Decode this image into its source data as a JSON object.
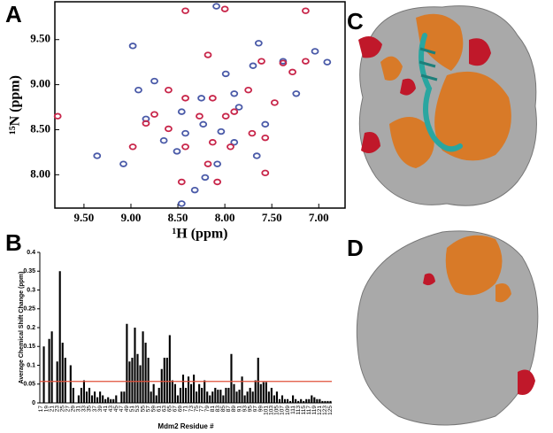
{
  "panels": [
    "A",
    "B",
    "C",
    "D"
  ],
  "chart_data": [
    {
      "type": "scatter",
      "xlabel": "¹H (ppm)",
      "ylabel": "¹⁵N (ppm)",
      "xlim": [
        9.81,
        6.72
      ],
      "ylim": [
        7.63,
        9.92
      ],
      "xticks": [
        {
          "value": 9.5,
          "label": "9.50"
        },
        {
          "value": 9.0,
          "label": "9.00"
        },
        {
          "value": 8.5,
          "label": "8.50"
        },
        {
          "value": 8.0,
          "label": "8.00"
        },
        {
          "value": 7.5,
          "label": "7.50"
        },
        {
          "value": 7.0,
          "label": "7.00"
        }
      ],
      "yticks": [
        {
          "value": 9.5,
          "label": "9.50"
        },
        {
          "value": 9.0,
          "label": "9.00"
        },
        {
          "value": 8.5,
          "label": "8.50"
        },
        {
          "value": 8.0,
          "label": "8.00"
        }
      ],
      "series": [
        {
          "color": "#4a5aa8",
          "x": [
            8.09,
            7.64,
            7.04,
            7.38,
            7.7,
            6.91,
            8.92,
            8.75,
            7.99,
            8.25,
            7.9,
            7.85,
            8.46,
            8.23,
            8.04,
            8.42,
            8.65,
            7.9,
            7.57,
            8.84,
            8.08,
            8.51,
            8.21,
            7.66,
            8.32,
            9.08,
            9.36,
            8.98,
            7.24,
            8.46
          ],
          "values": [
            9.87,
            9.46,
            9.37,
            9.26,
            9.21,
            9.25,
            8.94,
            9.04,
            9.12,
            8.85,
            8.9,
            8.75,
            8.7,
            8.56,
            8.48,
            8.46,
            8.38,
            8.36,
            8.56,
            8.62,
            8.12,
            8.26,
            7.97,
            8.21,
            7.83,
            8.12,
            8.21,
            9.43,
            8.9,
            7.68
          ]
        },
        {
          "color": "#c8264a",
          "x": [
            8.42,
            8.0,
            7.14,
            7.61,
            7.14,
            8.18,
            7.28,
            7.75,
            8.6,
            8.42,
            8.13,
            7.99,
            8.27,
            8.75,
            8.84,
            8.6,
            8.42,
            8.13,
            7.94,
            7.71,
            7.57,
            8.18,
            8.08,
            8.46,
            7.9,
            9.78,
            8.98,
            7.47,
            7.38,
            7.57
          ],
          "values": [
            9.82,
            9.84,
            9.82,
            9.26,
            9.26,
            9.33,
            9.14,
            8.94,
            8.94,
            8.85,
            8.85,
            8.65,
            8.65,
            8.67,
            8.57,
            8.51,
            8.31,
            8.36,
            8.31,
            8.46,
            8.02,
            8.12,
            7.92,
            7.92,
            8.7,
            8.65,
            8.31,
            8.8,
            9.24,
            8.41
          ]
        }
      ]
    },
    {
      "type": "bar",
      "xlabel": "Mdm2 Residue #",
      "ylabel": "Average Chemical Shift Change (ppm)",
      "color": "#000000",
      "threshold": 0.057,
      "threshold_color": "#e0503a",
      "ylim": [
        0,
        0.4
      ],
      "yticks": [
        0,
        0.05,
        0.1,
        0.15,
        0.2,
        0.25,
        0.3,
        0.35,
        0.4
      ],
      "categories": [
        "17",
        null,
        "19",
        null,
        "21",
        null,
        "23",
        null,
        "25",
        null,
        "27",
        null,
        "29",
        null,
        "31",
        null,
        "33",
        null,
        "35",
        null,
        "37",
        null,
        "39",
        null,
        "41",
        null,
        "43",
        null,
        "45",
        null,
        "47",
        null,
        "49",
        null,
        "51",
        null,
        "53",
        null,
        "55",
        null,
        "57",
        null,
        "59",
        null,
        "61",
        null,
        "63",
        null,
        "65",
        null,
        "67",
        null,
        "69",
        null,
        "71",
        null,
        "73",
        null,
        "75",
        null,
        "77",
        null,
        "79",
        null,
        "81",
        null,
        "83",
        null,
        "85",
        null,
        "87",
        null,
        "89",
        null,
        "91",
        null,
        "93",
        null,
        "95",
        null,
        "97",
        null,
        "99",
        null,
        "101",
        null,
        "103",
        null,
        "105",
        null,
        "107",
        null,
        "109",
        null,
        "111",
        null,
        "113",
        null,
        "115",
        null,
        "117",
        null,
        "119",
        null,
        "121",
        null,
        "123",
        null,
        "125"
      ],
      "values": [
        0.0,
        0.15,
        0.0,
        0.17,
        0.19,
        0.0,
        0.11,
        0.35,
        0.16,
        0.12,
        0.0,
        0.1,
        0.04,
        0.0,
        0.02,
        0.04,
        0.06,
        0.03,
        0.04,
        0.02,
        0.03,
        0.015,
        0.03,
        0.02,
        0.01,
        0.015,
        0.01,
        0.01,
        0.02,
        0.0,
        0.03,
        0.03,
        0.21,
        0.11,
        0.12,
        0.2,
        0.13,
        0.1,
        0.19,
        0.16,
        0.12,
        0.03,
        0.05,
        0.02,
        0.04,
        0.09,
        0.12,
        0.12,
        0.18,
        0.06,
        0.05,
        0.02,
        0.04,
        0.075,
        0.04,
        0.07,
        0.05,
        0.075,
        0.03,
        0.05,
        0.04,
        0.06,
        0.03,
        0.02,
        0.03,
        0.04,
        0.035,
        0.035,
        0.02,
        0.04,
        0.04,
        0.13,
        0.05,
        0.03,
        0.035,
        0.07,
        0.02,
        0.03,
        0.04,
        0.03,
        0.06,
        0.12,
        0.05,
        0.055,
        0.055,
        0.03,
        0.04,
        0.02,
        0.03,
        0.01,
        0.02,
        0.01,
        0.01,
        0.005,
        0.02,
        0.01,
        0.005,
        0.01,
        0.005,
        0.01,
        0.01,
        0.02,
        0.015,
        0.01,
        0.01,
        0.005,
        0.005,
        0.005,
        0.005
      ]
    }
  ]
}
